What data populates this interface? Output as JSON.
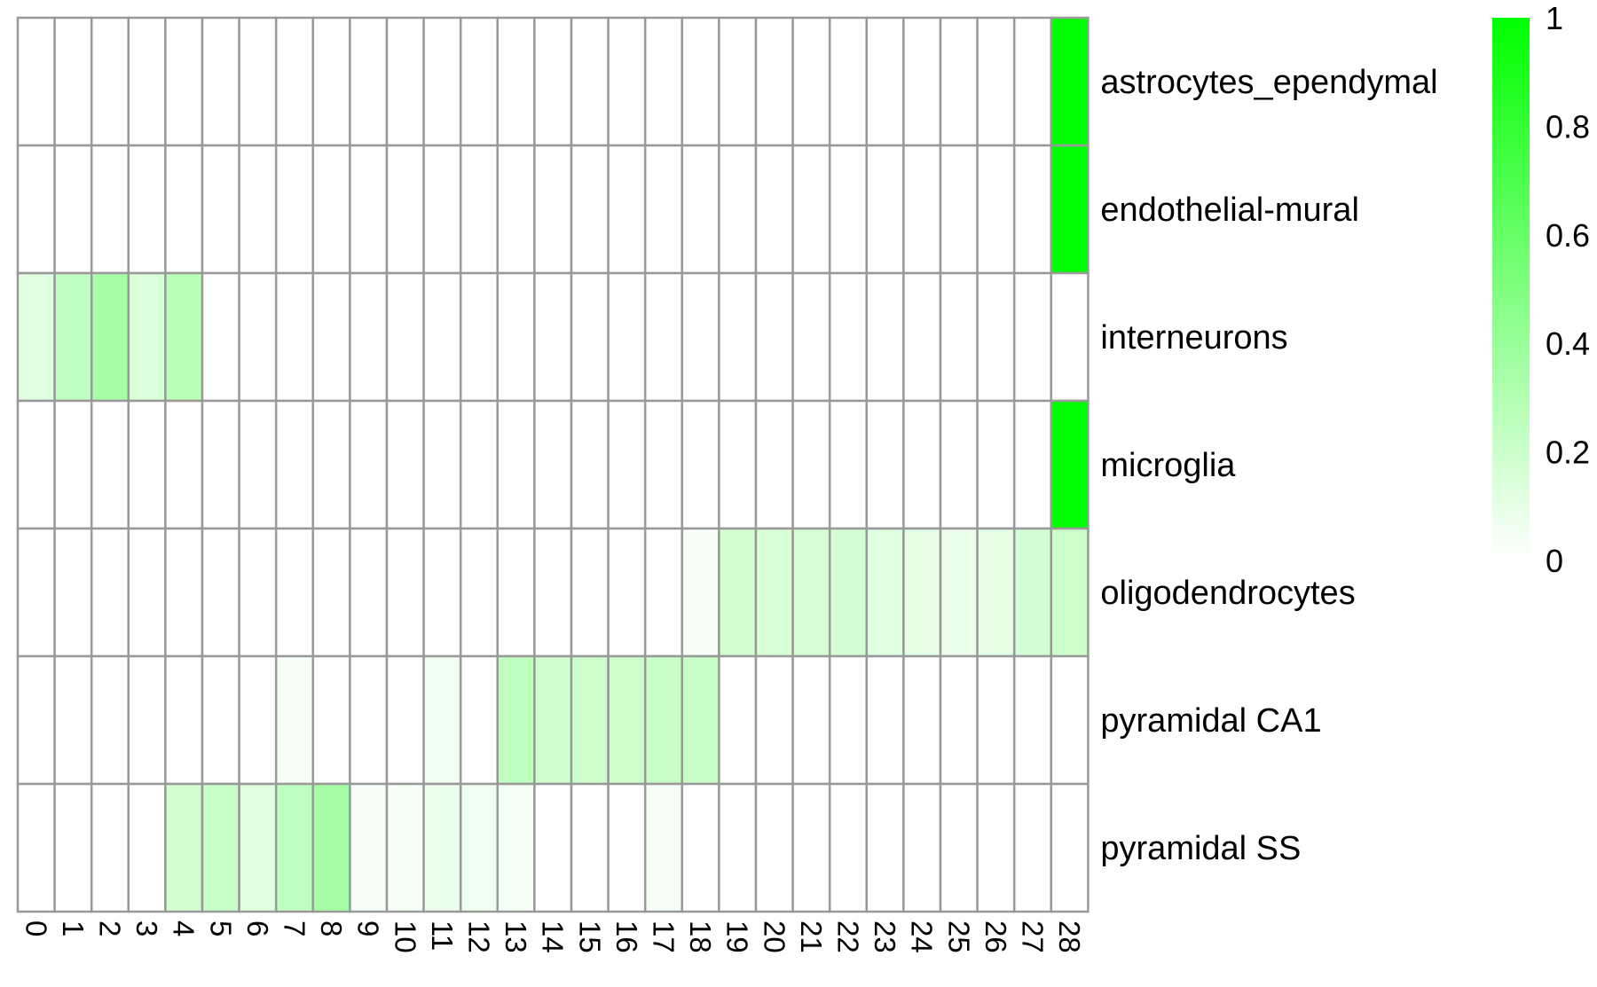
{
  "chart_data": {
    "type": "heatmap",
    "rows": [
      "astrocytes_ependymal",
      "endothelial-mural",
      "interneurons",
      "microglia",
      "oligodendrocytes",
      "pyramidal CA1",
      "pyramidal SS"
    ],
    "columns": [
      "0",
      "1",
      "2",
      "3",
      "4",
      "5",
      "6",
      "7",
      "8",
      "9",
      "10",
      "11",
      "12",
      "13",
      "14",
      "15",
      "16",
      "17",
      "18",
      "19",
      "20",
      "21",
      "22",
      "23",
      "24",
      "25",
      "26",
      "27",
      "28"
    ],
    "values": [
      [
        0,
        0,
        0,
        0,
        0,
        0,
        0,
        0,
        0,
        0,
        0,
        0,
        0,
        0,
        0,
        0,
        0,
        0,
        0,
        0,
        0,
        0,
        0,
        0,
        0,
        0,
        0,
        0,
        1
      ],
      [
        0,
        0,
        0,
        0,
        0,
        0,
        0,
        0,
        0,
        0,
        0,
        0,
        0,
        0,
        0,
        0,
        0,
        0,
        0,
        0,
        0,
        0,
        0,
        0,
        0,
        0,
        0,
        0,
        1
      ],
      [
        0.12,
        0.25,
        0.35,
        0.14,
        0.28,
        0,
        0,
        0,
        0,
        0,
        0,
        0,
        0,
        0,
        0,
        0,
        0,
        0,
        0,
        0,
        0,
        0,
        0,
        0,
        0,
        0,
        0,
        0,
        0
      ],
      [
        0,
        0,
        0,
        0,
        0,
        0,
        0,
        0,
        0,
        0,
        0,
        0,
        0,
        0,
        0,
        0,
        0,
        0,
        0,
        0,
        0,
        0,
        0,
        0,
        0,
        0,
        0,
        0,
        1
      ],
      [
        0,
        0,
        0,
        0,
        0,
        0,
        0,
        0,
        0,
        0,
        0,
        0,
        0,
        0,
        0,
        0,
        0,
        0,
        0.03,
        0.18,
        0.15,
        0.16,
        0.17,
        0.12,
        0.1,
        0.08,
        0.1,
        0.17,
        0.2
      ],
      [
        0,
        0,
        0,
        0,
        0,
        0,
        0,
        0.03,
        0,
        0,
        0,
        0.06,
        0,
        0.25,
        0.19,
        0.2,
        0.2,
        0.22,
        0.22,
        0,
        0,
        0,
        0,
        0,
        0,
        0,
        0,
        0,
        0
      ],
      [
        0,
        0,
        0,
        0,
        0.18,
        0.22,
        0.12,
        0.25,
        0.35,
        0.03,
        0.04,
        0.08,
        0.06,
        0.04,
        0,
        0,
        0,
        0.03,
        0,
        0,
        0,
        0,
        0,
        0,
        0,
        0,
        0,
        0,
        0
      ]
    ],
    "colorscale": {
      "min": 0,
      "max": 1,
      "low_color": "#ffffff",
      "high_color": "#00ff00"
    },
    "legend_ticks": [
      "0",
      "0.2",
      "0.4",
      "0.6",
      "0.8",
      "1"
    ],
    "legend_placement": "right",
    "grid_color": "#999999"
  }
}
